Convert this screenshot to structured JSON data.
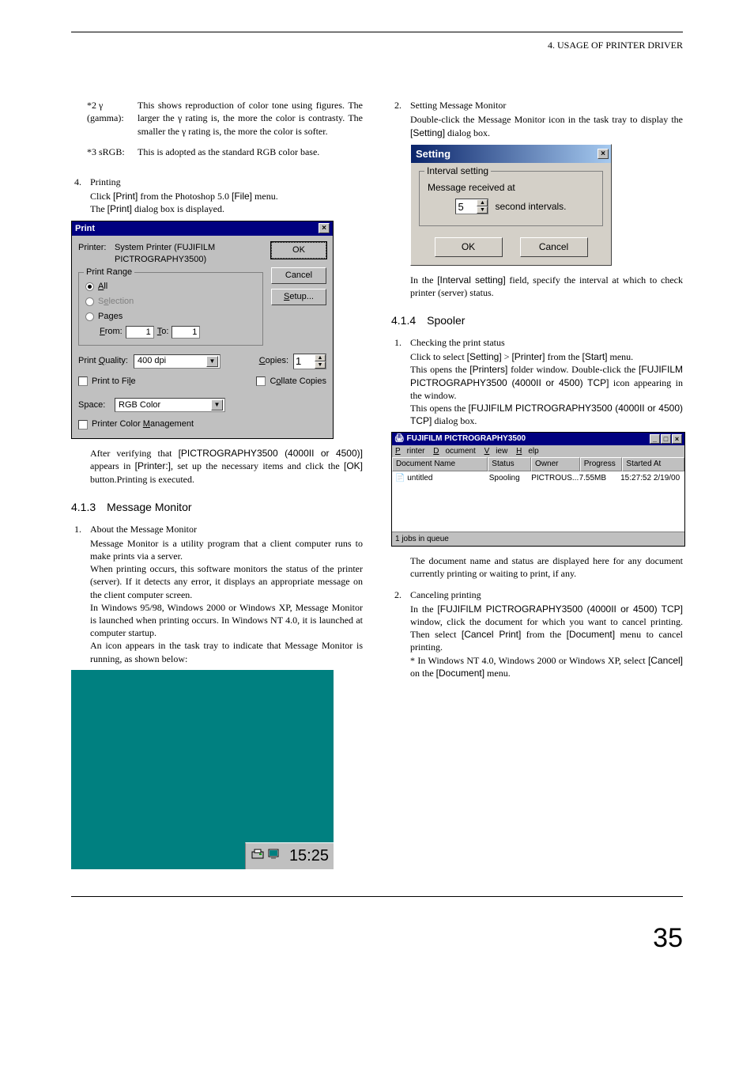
{
  "header": {
    "section": "4. USAGE OF PRINTER DRIVER"
  },
  "notes": {
    "gamma": {
      "key": "*2 γ (gamma):",
      "val": "This shows reproduction of color tone using figures. The larger the γ rating is, the more the color is contrasty. The smaller the γ rating is, the more the color is softer."
    },
    "srgb": {
      "key": "*3 sRGB:",
      "val": "This is adopted as the standard RGB color base."
    }
  },
  "item4": {
    "num": "4.",
    "title": "Printing",
    "line1a": "Click ",
    "line1b": "[Print]",
    "line1c": " from the Photoshop 5.0 ",
    "line1d": "[File]",
    "line1e": " menu.",
    "line2a": "The ",
    "line2b": "[Print]",
    "line2c": " dialog box is displayed."
  },
  "printDlg": {
    "title": "Print",
    "printerLabel": "Printer:",
    "printerValue1": "System Printer (FUJIFILM",
    "printerValue2": "PICTROGRAPHY3500)",
    "ok": "OK",
    "cancel": "Cancel",
    "setup": "Setup...",
    "range": "Print Range",
    "all": "All",
    "selection": "Selection",
    "pages": "Pages",
    "from": "From:",
    "to": "To:",
    "fromVal": "1",
    "toVal": "1",
    "pqLabel": "Print Quality:",
    "pqValue": "400 dpi",
    "copiesLabel": "Copies:",
    "copiesVal": "1",
    "printToFile": "Print to File",
    "collate": "Collate Copies",
    "spaceLabel": "Space:",
    "spaceVal": "RGB Color",
    "pcm": "Printer Color Management"
  },
  "afterPrint": {
    "a": "After verifying that ",
    "b": "[PICTROGRAPHY3500 (4000",
    "c": " or 4500)]",
    "d": " appears in ",
    "e": "[Printer:]",
    "f": ", set up the necessary items and click the ",
    "g": "[OK]",
    "h": " button.Printing is executed."
  },
  "sec413": {
    "num": "4.1.3",
    "title": "Message Monitor",
    "i1num": "1.",
    "i1title": "About the Message Monitor",
    "p1": "Message Monitor is a utility program that a client computer runs to make prints via a server.",
    "p2": "When printing occurs, this software monitors the status of the printer (server). If it detects any error, it displays an appropriate message on the client computer screen.",
    "p3": "In Windows 95/98, Windows 2000 or Windows XP, Message Monitor is launched when printing occurs.  In Windows NT 4.0, it is launched at computer startup.",
    "p4": "An icon appears in the task tray to indicate that Message Monitor is running, as shown below:"
  },
  "tray": {
    "time": "15:25"
  },
  "right": {
    "i2num": "2.",
    "i2title": "Setting Message Monitor",
    "i2a": "Double-click the Message Monitor icon in the task tray to display the ",
    "i2b": "[Setting]",
    "i2c": " dialog box."
  },
  "settingDlg": {
    "title": "Setting",
    "group": "Interval setting",
    "msg": "Message received at",
    "val": "5",
    "unit": "second intervals.",
    "ok": "OK",
    "cancel": "Cancel"
  },
  "afterSetting": {
    "a": "In the ",
    "b": "[Interval setting]",
    "c": " field, specify the interval at which to check printer (server) status."
  },
  "sec414": {
    "num": "4.1.4",
    "title": "Spooler",
    "i1num": "1.",
    "i1title": "Checking the print status",
    "l1a": "Click to select ",
    "l1b": "[Setting]",
    "l1c": " > ",
    "l1d": "[Printer]",
    "l1e": " from the ",
    "l1f": "[Start]",
    "l1g": " menu.",
    "l2a": "This opens the ",
    "l2b": "[Printers]",
    "l2c": " folder window. Double-click the ",
    "l2d": "[FUJIFILM PICTROGRAPHY3500 (4000",
    "l2e": " or 4500) TCP]",
    "l2f": " icon appearing in the window.",
    "l3a": "This opens the ",
    "l3b": "[FUJIFILM PICTROGRAPHY3500 (4000",
    "l3c": " or 4500) TCP]",
    "l3d": " dialog box."
  },
  "spooler": {
    "title": "FUJIFILM PICTROGRAPHY3500",
    "menu": {
      "printer": "Printer",
      "document": "Document",
      "view": "View",
      "help": "Help"
    },
    "cols": {
      "doc": "Document Name",
      "status": "Status",
      "owner": "Owner",
      "progress": "Progress",
      "started": "Started At"
    },
    "row": {
      "doc": "untitled",
      "status": "Spooling",
      "owner": "PICTROUS...",
      "progress": "7.55MB",
      "started": "15:27:52 2/19/00"
    },
    "footer": "1 jobs in queue",
    "colw": {
      "doc": 122,
      "status": 55,
      "owner": 62,
      "progress": 54,
      "started": 79
    }
  },
  "afterSpool": "The document name and status are displayed here for any document currently printing or waiting to print, if any.",
  "cancel": {
    "num": "2.",
    "title": "Canceling printing",
    "a": "In the ",
    "b": "[FUJIFILM PICTROGRAPHY3500 (4000",
    "c": " or 4500) TCP]",
    "d": " window, click the document for which you want to cancel printing. Then select ",
    "e": "[Cancel Print]",
    "f": " from the ",
    "g": "[Document]",
    "h": " menu to cancel printing.",
    "n1": "* In Windows NT 4.0, Windows 2000 or Windows XP, select ",
    "n2": "[Cancel]",
    "n3": " on the ",
    "n4": "[Document]",
    "n5": " menu."
  },
  "pageNumber": "35"
}
